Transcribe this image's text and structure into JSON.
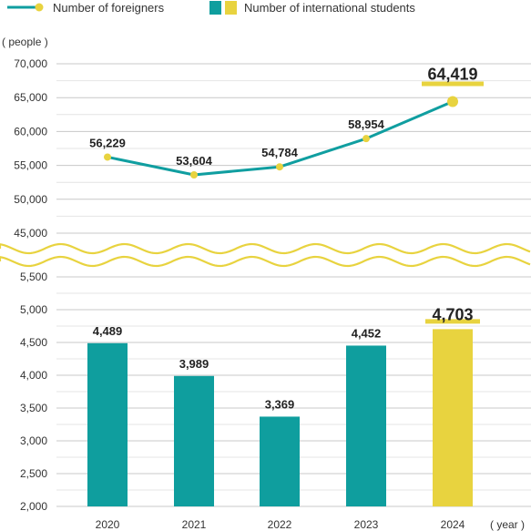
{
  "chart_data": {
    "type": "bar",
    "categories": [
      "2020",
      "2021",
      "2022",
      "2023",
      "2024"
    ],
    "series": [
      {
        "name": "Number of foreigners",
        "type": "line",
        "values": [
          56229,
          53604,
          54784,
          58954,
          64419
        ],
        "labels": [
          "56,229",
          "53,604",
          "54,784",
          "58,954",
          "64,419"
        ],
        "color": "#109ea0",
        "marker_color": "#e8d33f"
      },
      {
        "name": "Number of international students",
        "type": "bar",
        "values": [
          4489,
          3989,
          3369,
          4452,
          4703
        ],
        "labels": [
          "4,489",
          "3,989",
          "3,369",
          "4,452",
          "4,703"
        ],
        "color": "#0f9e9e",
        "highlight_color": "#e8d33f",
        "highlight_index": 4
      }
    ],
    "upper_axis": {
      "ylim": [
        45000,
        70000
      ],
      "ticks": [
        "45,000",
        "50,000",
        "55,000",
        "60,000",
        "65,000",
        "70,000"
      ]
    },
    "lower_axis": {
      "ylim": [
        2000,
        5500
      ],
      "ticks": [
        "2,000",
        "2,500",
        "3,000",
        "3,500",
        "4,000",
        "4,500",
        "5,000",
        "5,500"
      ]
    },
    "ylabel": "( people )",
    "xlabel": "( year )",
    "axis_break": true,
    "legend_position": "top-left",
    "grid": true
  }
}
